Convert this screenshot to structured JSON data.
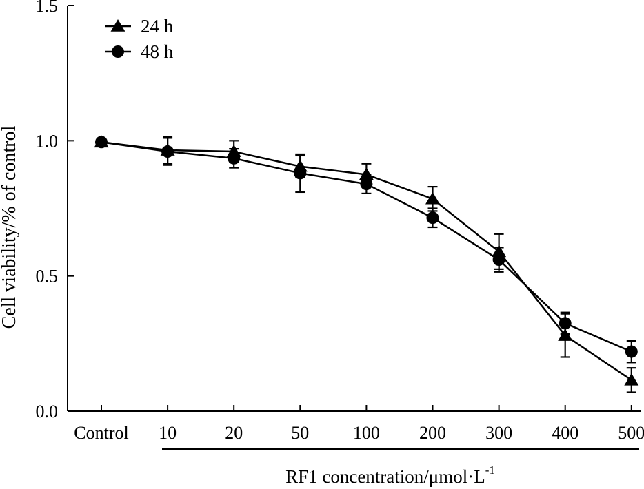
{
  "chart_data": {
    "type": "line",
    "categories": [
      "Control",
      "10",
      "20",
      "50",
      "100",
      "200",
      "300",
      "400",
      "500"
    ],
    "ylabel": "Cell viability/% of control",
    "xlabel": "RF1 concentration/μmol·L",
    "xlabel_superscript": "-1",
    "ylim": [
      0,
      1.5
    ],
    "yticks": [
      0.0,
      0.5,
      1.0,
      1.5
    ],
    "ytick_labels": [
      "0.0",
      "0.5",
      "1.0",
      "1.5"
    ],
    "legend_position": "top-left",
    "series": [
      {
        "name": "24 h",
        "marker": "triangle",
        "values": [
          0.995,
          0.965,
          0.96,
          0.905,
          0.875,
          0.785,
          0.59,
          0.28,
          0.115
        ],
        "errors": [
          0.01,
          0.05,
          0.04,
          0.04,
          0.04,
          0.045,
          0.065,
          0.08,
          0.045
        ]
      },
      {
        "name": "48 h",
        "marker": "circle",
        "values": [
          0.995,
          0.96,
          0.935,
          0.88,
          0.84,
          0.715,
          0.56,
          0.325,
          0.22
        ],
        "errors": [
          0.01,
          0.05,
          0.035,
          0.07,
          0.035,
          0.035,
          0.045,
          0.04,
          0.04
        ]
      }
    ]
  }
}
